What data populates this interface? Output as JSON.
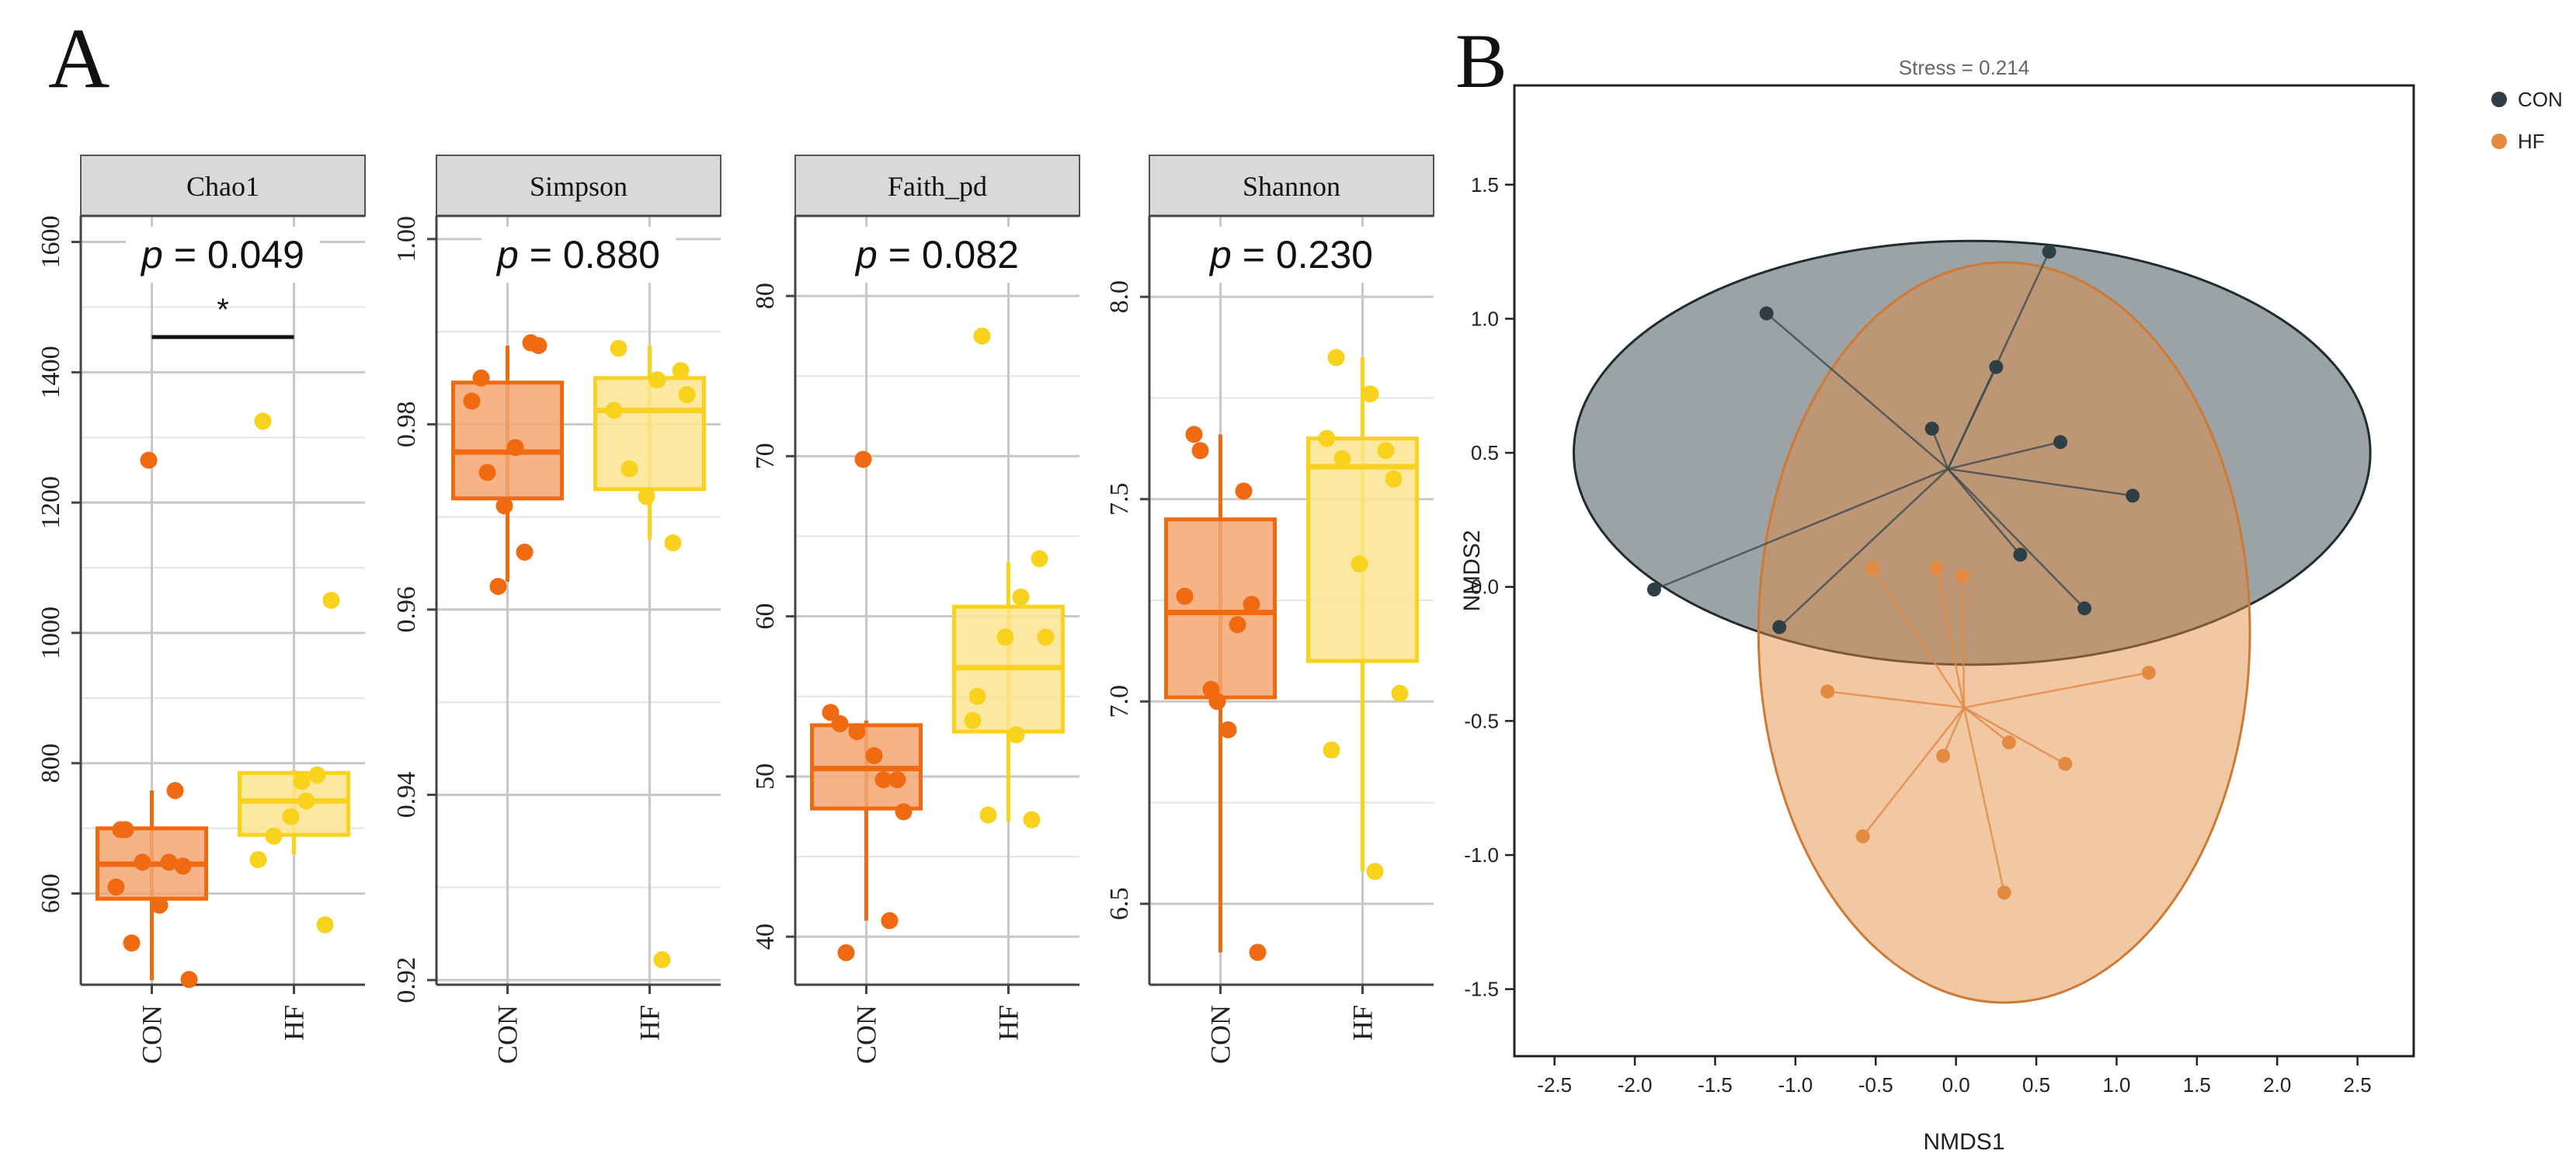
{
  "panels": {
    "a_label": "A",
    "b_label": "B"
  },
  "colors": {
    "con": "#f06a12",
    "con_fill": "#f5a672",
    "hf": "#f8d21c",
    "hf_fill": "#fbe490",
    "ord_con": "#2e3f45",
    "ord_hf": "#e28a40",
    "strip_bg": "#d9d9d9",
    "grid": "#c8c8c8"
  },
  "chart_data": [
    {
      "type": "box",
      "title": "Chao1",
      "annotation_label": "p",
      "annotation_value": " = 0.049",
      "significance": "*",
      "categories": [
        "CON",
        "HF"
      ],
      "ylim": [
        460,
        1640
      ],
      "yticks": [
        600,
        800,
        1000,
        1200,
        1400,
        1600
      ],
      "tick_labels": [
        "600",
        "800",
        "1000",
        "1200",
        "1400",
        "1600"
      ],
      "boxes": [
        {
          "q1": 592,
          "median": 645,
          "q3": 700,
          "lower": 467,
          "upper": 758
        },
        {
          "q1": 690,
          "median": 742,
          "q3": 785,
          "lower": 660,
          "upper": 790
        }
      ],
      "points": [
        [
          698,
          648,
          648,
          642,
          610,
          582,
          524,
          758,
          1265,
          468,
          698
        ],
        [
          552,
          652,
          772,
          688,
          782,
          718,
          1050,
          1325,
          742
        ]
      ]
    },
    {
      "type": "box",
      "title": "Simpson",
      "annotation_label": "p",
      "annotation_value": " = 0.880",
      "categories": [
        "CON",
        "HF"
      ],
      "ylim": [
        0.9195,
        1.0025
      ],
      "yticks": [
        0.92,
        0.94,
        0.96,
        0.98,
        1.0
      ],
      "tick_labels": [
        "0.92",
        "0.94",
        "0.96",
        "0.98",
        "1.00"
      ],
      "boxes": [
        {
          "q1": 0.972,
          "median": 0.977,
          "q3": 0.9845,
          "lower": 0.963,
          "upper": 0.9885
        },
        {
          "q1": 0.973,
          "median": 0.9815,
          "q3": 0.985,
          "lower": 0.9675,
          "upper": 0.9885
        }
      ],
      "points": [
        [
          0.985,
          0.9662,
          0.9625,
          0.9885,
          0.9825,
          0.9775,
          0.9748,
          0.9888,
          0.9712
        ],
        [
          0.9858,
          0.9815,
          0.9848,
          0.9752,
          0.9672,
          0.9722,
          0.9832,
          0.9882,
          0.9222
        ]
      ]
    },
    {
      "type": "box",
      "title": "Faith_pd",
      "annotation_label": "p",
      "annotation_value": " = 0.082",
      "categories": [
        "CON",
        "HF"
      ],
      "ylim": [
        37,
        85
      ],
      "yticks": [
        40,
        50,
        60,
        70,
        80
      ],
      "tick_labels": [
        "40",
        "50",
        "60",
        "70",
        "80"
      ],
      "boxes": [
        {
          "q1": 48,
          "median": 50.5,
          "q3": 53.2,
          "lower": 41,
          "upper": 53.5
        },
        {
          "q1": 52.8,
          "median": 56.8,
          "q3": 60.6,
          "lower": 47.2,
          "upper": 63.4
        }
      ],
      "points": [
        [
          53.3,
          49.8,
          52.8,
          49.8,
          54.0,
          51.3,
          39.0,
          41.0,
          69.8,
          47.8
        ],
        [
          63.6,
          53.5,
          52.6,
          47.6,
          47.3,
          58.7,
          58.7,
          55.0,
          61.2,
          77.5
        ]
      ]
    },
    {
      "type": "box",
      "title": "Shannon",
      "annotation_label": "p",
      "annotation_value": " = 0.230",
      "categories": [
        "CON",
        "HF"
      ],
      "ylim": [
        6.3,
        8.2
      ],
      "yticks": [
        6.5,
        7.0,
        7.5,
        8.0
      ],
      "tick_labels": [
        "6.5",
        "7.0",
        "7.5",
        "8.0"
      ],
      "boxes": [
        {
          "q1": 7.01,
          "median": 7.22,
          "q3": 7.45,
          "lower": 6.38,
          "upper": 7.66
        },
        {
          "q1": 7.1,
          "median": 7.58,
          "q3": 7.65,
          "lower": 6.58,
          "upper": 7.85
        }
      ],
      "points": [
        [
          7.66,
          7.19,
          7.03,
          7.24,
          7.26,
          6.93,
          7.62,
          7.52,
          7.0,
          6.38
        ],
        [
          7.55,
          7.65,
          7.76,
          7.6,
          7.62,
          7.34,
          7.02,
          6.88,
          6.58,
          7.85
        ]
      ]
    },
    {
      "type": "scatter",
      "title": "Stress = 0.214",
      "xlabel": "NMDS1",
      "ylabel": "NMDS2",
      "xlim": [
        -2.75,
        2.85
      ],
      "ylim": [
        -1.75,
        1.87
      ],
      "xticks": [
        -2.5,
        -2.0,
        -1.5,
        -1.0,
        -0.5,
        0.0,
        0.5,
        1.0,
        1.5,
        2.0,
        2.5
      ],
      "xtick_labels": [
        "-2.5",
        "-2.0",
        "-1.5",
        "-1.0",
        "-0.5",
        "0.0",
        "0.5",
        "1.0",
        "1.5",
        "2.0",
        "2.5"
      ],
      "yticks": [
        -1.5,
        -1.0,
        -0.5,
        0.0,
        0.5,
        1.0,
        1.5
      ],
      "ytick_labels": [
        "-1.5",
        "-1.0",
        "-0.5",
        "0.0",
        "0.5",
        "1.0",
        "1.5"
      ],
      "legend": [
        "CON",
        "HF"
      ],
      "legend_position": "top-right outside",
      "series": [
        {
          "name": "CON",
          "centroid": [
            -0.05,
            0.44
          ],
          "ellipse": {
            "cx": 0.1,
            "cy": 0.5,
            "rx": 2.48,
            "ry": 0.79,
            "rotation_deg": 0
          },
          "points": [
            [
              -1.88,
              -0.01
            ],
            [
              -1.18,
              1.02
            ],
            [
              -1.1,
              -0.15
            ],
            [
              -0.15,
              0.59
            ],
            [
              0.25,
              0.82
            ],
            [
              0.58,
              1.25
            ],
            [
              0.65,
              0.54
            ],
            [
              1.1,
              0.34
            ],
            [
              0.4,
              0.12
            ],
            [
              0.8,
              -0.08
            ]
          ]
        },
        {
          "name": "HF",
          "centroid": [
            0.05,
            -0.45
          ],
          "ellipse": {
            "cx": 0.3,
            "cy": -0.17,
            "rx": 1.53,
            "ry": 1.38,
            "rotation_deg": 0
          },
          "points": [
            [
              -0.52,
              0.07
            ],
            [
              -0.12,
              0.07
            ],
            [
              0.04,
              0.04
            ],
            [
              -0.8,
              -0.39
            ],
            [
              1.2,
              -0.32
            ],
            [
              -0.08,
              -0.63
            ],
            [
              0.33,
              -0.58
            ],
            [
              0.68,
              -0.66
            ],
            [
              -0.58,
              -0.93
            ],
            [
              0.3,
              -1.14
            ]
          ]
        }
      ]
    }
  ]
}
